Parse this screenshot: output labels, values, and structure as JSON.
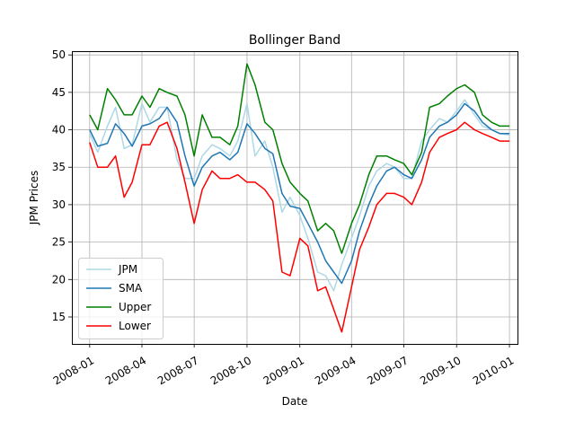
{
  "chart_data": {
    "type": "line",
    "title": "Bollinger Band",
    "xlabel": "Date",
    "ylabel": "JPM Prices",
    "grid": true,
    "legend_position": "lower-left",
    "xlim": [
      "2007-12-01",
      "2010-01-15"
    ],
    "ylim": [
      11.4,
      50.5
    ],
    "x_ticks": [
      "2008-01-01",
      "2008-04-01",
      "2008-07-01",
      "2008-10-01",
      "2009-01-01",
      "2009-04-01",
      "2009-07-01",
      "2009-10-01",
      "2010-01-01"
    ],
    "x_tick_labels": [
      "2008-01",
      "2008-04",
      "2008-07",
      "2008-10",
      "2009-01",
      "2009-04",
      "2009-07",
      "2009-10",
      "2010-01"
    ],
    "y_ticks": [
      15,
      20,
      25,
      30,
      35,
      40,
      45,
      50
    ],
    "x": [
      "2008-01-01",
      "2008-01-15",
      "2008-02-01",
      "2008-02-15",
      "2008-03-01",
      "2008-03-15",
      "2008-04-01",
      "2008-04-15",
      "2008-05-01",
      "2008-05-15",
      "2008-06-01",
      "2008-06-15",
      "2008-07-01",
      "2008-07-15",
      "2008-08-01",
      "2008-08-15",
      "2008-09-01",
      "2008-09-15",
      "2008-10-01",
      "2008-10-15",
      "2008-11-01",
      "2008-11-15",
      "2008-12-01",
      "2008-12-15",
      "2009-01-01",
      "2009-01-15",
      "2009-02-01",
      "2009-02-15",
      "2009-03-01",
      "2009-03-15",
      "2009-04-01",
      "2009-04-15",
      "2009-05-01",
      "2009-05-15",
      "2009-06-01",
      "2009-06-15",
      "2009-07-01",
      "2009-07-15",
      "2009-08-01",
      "2009-08-15",
      "2009-09-01",
      "2009-09-15",
      "2009-10-01",
      "2009-10-15",
      "2009-11-01",
      "2009-11-15",
      "2009-12-01",
      "2009-12-15",
      "2010-01-01"
    ],
    "series": [
      {
        "name": "JPM",
        "color": "#add8e6",
        "values": [
          39.5,
          37.0,
          40.5,
          43.0,
          37.5,
          38.0,
          43.5,
          41.0,
          43.0,
          43.0,
          36.0,
          33.5,
          33.5,
          36.5,
          38.0,
          37.5,
          36.5,
          38.5,
          43.5,
          36.5,
          38.5,
          35.0,
          29.0,
          31.0,
          28.5,
          25.5,
          21.0,
          20.5,
          18.5,
          22.0,
          25.5,
          28.5,
          32.5,
          34.5,
          35.5,
          35.0,
          33.5,
          33.5,
          38.5,
          40.0,
          41.5,
          41.0,
          42.5,
          44.0,
          42.0,
          40.5,
          40.0,
          39.5,
          39.3
        ]
      },
      {
        "name": "SMA",
        "color": "#1f77b4",
        "values": [
          40.0,
          37.8,
          38.2,
          40.8,
          39.5,
          37.8,
          40.5,
          40.8,
          41.5,
          43.0,
          41.0,
          36.5,
          32.5,
          35.0,
          36.5,
          37.0,
          36.0,
          37.0,
          40.8,
          39.5,
          37.5,
          36.8,
          31.5,
          29.8,
          29.5,
          27.5,
          25.0,
          22.5,
          21.0,
          19.5,
          22.5,
          26.5,
          30.0,
          32.5,
          34.5,
          35.0,
          34.0,
          33.5,
          36.0,
          39.0,
          40.5,
          41.0,
          42.0,
          43.5,
          42.5,
          41.0,
          40.0,
          39.5,
          39.5
        ]
      },
      {
        "name": "Upper",
        "color": "#008000",
        "values": [
          42.0,
          40.0,
          45.5,
          44.0,
          42.0,
          42.0,
          44.5,
          43.0,
          45.5,
          45.0,
          44.5,
          42.0,
          36.5,
          42.0,
          39.0,
          39.0,
          38.0,
          40.5,
          48.8,
          46.0,
          41.0,
          40.0,
          35.5,
          33.0,
          31.5,
          30.5,
          26.5,
          27.5,
          26.5,
          23.5,
          27.5,
          30.0,
          34.0,
          36.5,
          36.5,
          36.0,
          35.5,
          34.0,
          37.0,
          43.0,
          43.5,
          44.5,
          45.5,
          46.0,
          45.0,
          42.0,
          41.0,
          40.5,
          40.5
        ]
      },
      {
        "name": "Lower",
        "color": "#ff0000",
        "values": [
          38.3,
          35.0,
          35.0,
          36.5,
          31.0,
          33.0,
          38.0,
          38.0,
          40.5,
          41.0,
          37.5,
          33.0,
          27.5,
          32.0,
          34.5,
          33.5,
          33.5,
          34.0,
          33.0,
          33.0,
          32.0,
          30.5,
          21.0,
          20.5,
          25.5,
          24.5,
          18.5,
          19.0,
          16.0,
          13.0,
          19.0,
          24.0,
          27.0,
          30.0,
          31.5,
          31.5,
          31.0,
          30.0,
          33.0,
          37.0,
          39.0,
          39.5,
          40.0,
          41.0,
          40.0,
          39.5,
          39.0,
          38.5,
          38.5
        ]
      }
    ]
  }
}
